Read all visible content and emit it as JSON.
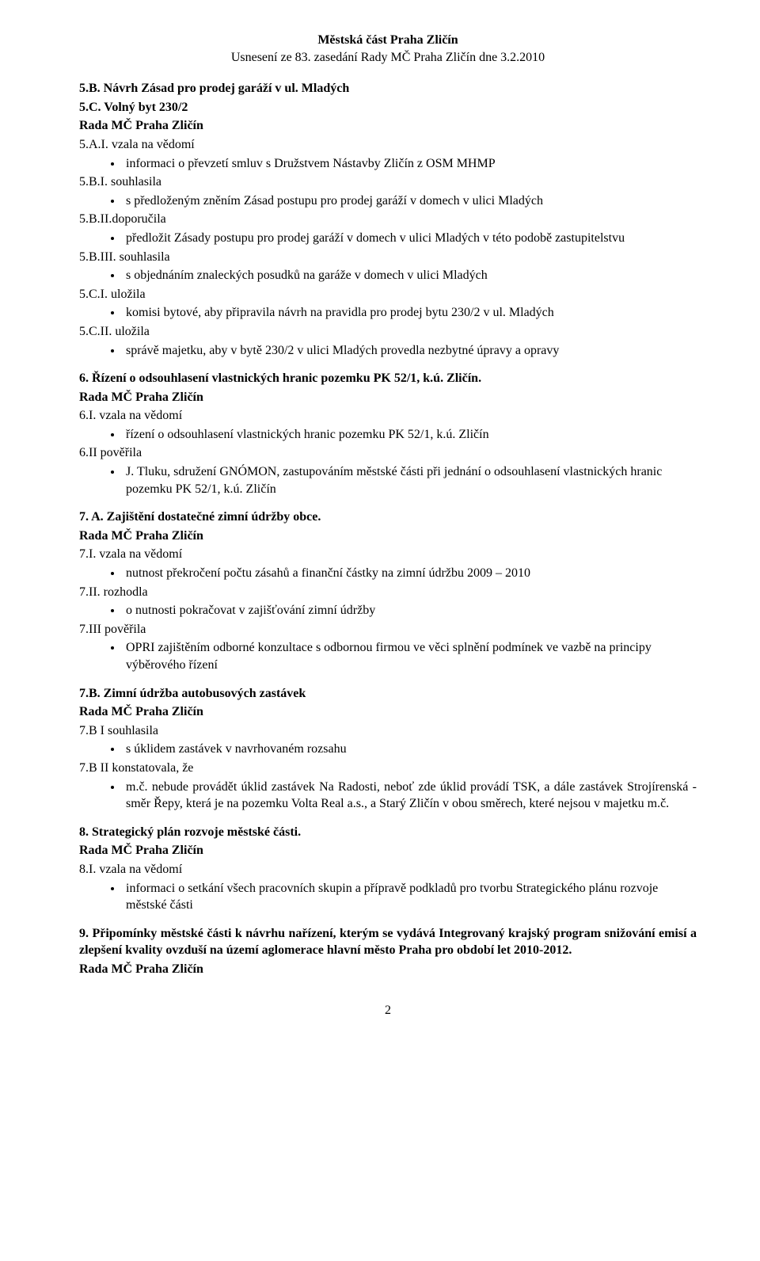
{
  "header": {
    "line1": "Městská část Praha Zličín",
    "line2": "Usnesení ze 83. zasedání Rady MČ Praha Zličín dne 3.2.2010"
  },
  "sections": [
    {
      "title": "5.B. Návrh Zásad pro prodej garáží v ul. Mladých",
      "sub": "5.C. Volný byt 230/2",
      "rada": "Rada MČ Praha Zličín",
      "items": [
        {
          "head": "5.A.I. vzala na vědomí",
          "bullets": [
            "informaci o převzetí smluv s Družstvem Nástavby Zličín z OSM MHMP"
          ]
        },
        {
          "head": "5.B.I. souhlasila",
          "bullets": [
            "s předloženým zněním Zásad postupu pro prodej garáží v domech v ulici Mladých"
          ]
        },
        {
          "head": "5.B.II.doporučila",
          "bullets": [
            "předložit Zásady postupu pro prodej garáží v domech v ulici Mladých v této podobě zastupitelstvu"
          ]
        },
        {
          "head": "5.B.III. souhlasila",
          "bullets": [
            "s objednáním znaleckých posudků na garáže v domech v ulici Mladých"
          ]
        },
        {
          "head": "5.C.I. uložila",
          "bullets": [
            "komisi bytové, aby připravila návrh na pravidla pro prodej bytu 230/2 v ul. Mladých"
          ]
        },
        {
          "head": "5.C.II. uložila",
          "bullets": [
            "správě majetku, aby v bytě 230/2 v ulici Mladých provedla nezbytné úpravy a opravy"
          ]
        }
      ]
    },
    {
      "title": "6. Řízení o odsouhlasení vlastnických hranic pozemku PK 52/1, k.ú. Zličín.",
      "rada": "Rada MČ Praha Zličín",
      "items": [
        {
          "head": "6.I. vzala na vědomí",
          "bullets": [
            "řízení o odsouhlasení vlastnických hranic pozemku PK 52/1, k.ú. Zličín"
          ]
        },
        {
          "head": "6.II pověřila",
          "bullets": [
            "J. Tluku, sdružení GNÓMON, zastupováním městské části při jednání o odsouhlasení vlastnických hranic pozemku PK 52/1, k.ú. Zličín"
          ]
        }
      ]
    },
    {
      "title": "7. A. Zajištění dostatečné zimní údržby obce.",
      "rada": "Rada MČ Praha Zličín",
      "items": [
        {
          "head": "7.I. vzala na vědomí",
          "bullets": [
            "nutnost překročení počtu zásahů a finanční částky na zimní údržbu 2009 – 2010"
          ]
        },
        {
          "head": "7.II. rozhodla",
          "bullets": [
            "o nutnosti pokračovat v zajišťování zimní údržby"
          ]
        },
        {
          "head": "7.III pověřila",
          "bullets": [
            "OPRI zajištěním odborné konzultace s odbornou firmou ve věci splnění podmínek ve vazbě na principy výběrového řízení"
          ]
        }
      ]
    },
    {
      "title": "7.B. Zimní údržba autobusových zastávek",
      "rada": "Rada MČ Praha Zličín",
      "items": [
        {
          "head": "7.B I souhlasila",
          "bullets": [
            "s úklidem zastávek v navrhovaném rozsahu"
          ]
        },
        {
          "head": "7.B II konstatovala, že",
          "bullets": [
            "m.č. nebude provádět úklid zastávek Na Radosti, neboť zde úklid provádí TSK, a dále zastávek Strojírenská - směr Řepy, která je na pozemku Volta Real a.s., a Starý Zličín v obou směrech, které nejsou v majetku m.č."
          ],
          "justify": true
        }
      ]
    },
    {
      "title": "8. Strategický plán rozvoje městské části.",
      "rada": "Rada MČ Praha Zličín",
      "items": [
        {
          "head": "8.I. vzala na vědomí",
          "bullets": [
            "informaci o setkání všech pracovních skupin a přípravě podkladů pro tvorbu Strategického plánu rozvoje městské části"
          ]
        }
      ]
    },
    {
      "title": "9. Připomínky městské části k návrhu nařízení, kterým se vydává Integrovaný krajský program snižování emisí a zlepšení kvality ovzduší na území aglomerace hlavní město Praha pro období let 2010-2012.",
      "titleJustify": true,
      "rada": "Rada MČ Praha Zličín",
      "items": []
    }
  ],
  "pageNumber": "2"
}
